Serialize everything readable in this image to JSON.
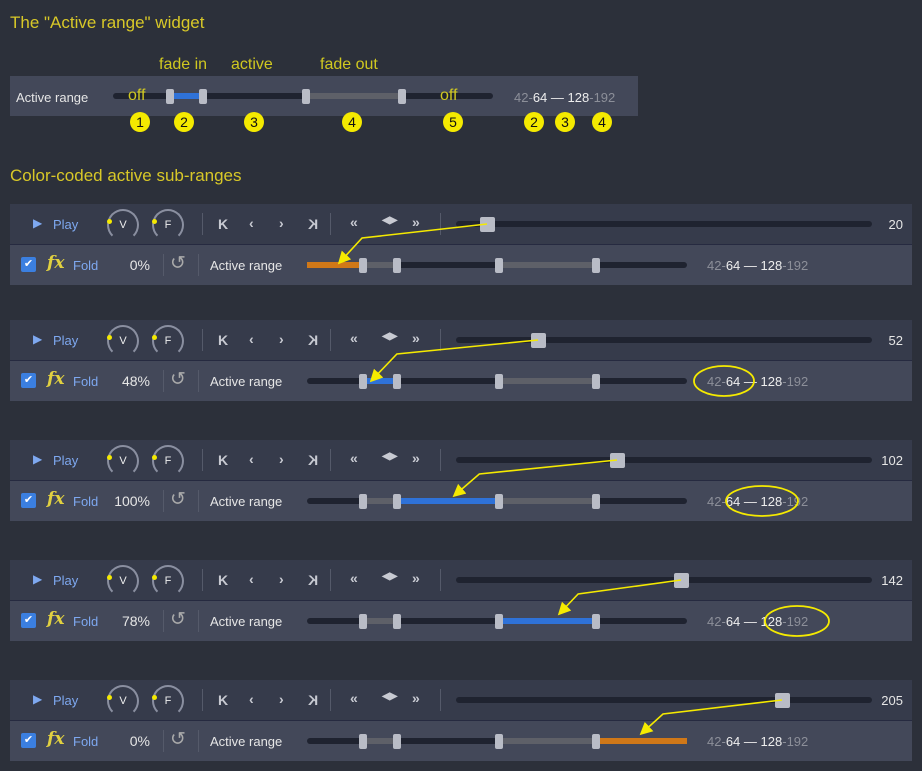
{
  "title": "The \"Active range\" widget",
  "widget": {
    "label": "Active range",
    "off1": "off",
    "off2": "off",
    "fade_in": "fade in",
    "active": "active",
    "fade_out": "fade out",
    "range": {
      "a": "42",
      "b": "64",
      "dash": "—",
      "c": "128",
      "d": "192"
    },
    "badges": [
      "1",
      "2",
      "3",
      "4",
      "5",
      "2",
      "3",
      "4"
    ]
  },
  "subtitle": "Color-coded active sub-ranges",
  "colors": {
    "accent_blue": "#2f72d8",
    "orange": "#d07818",
    "gray_segment": "#5e6068",
    "annotation": "#f5ea00"
  },
  "panels": [
    {
      "play": "Play",
      "knob_v": "V",
      "knob_f": "F",
      "slider_value": "20",
      "fold": "Fold",
      "percent": "0%",
      "label": "Active range",
      "active_segment": "below",
      "highlight": "none"
    },
    {
      "play": "Play",
      "knob_v": "V",
      "knob_f": "F",
      "slider_value": "52",
      "fold": "Fold",
      "percent": "48%",
      "label": "Active range",
      "active_segment": "fade-in",
      "highlight": "42-64"
    },
    {
      "play": "Play",
      "knob_v": "V",
      "knob_f": "F",
      "slider_value": "102",
      "fold": "Fold",
      "percent": "100%",
      "label": "Active range",
      "active_segment": "active",
      "highlight": "64-128"
    },
    {
      "play": "Play",
      "knob_v": "V",
      "knob_f": "F",
      "slider_value": "142",
      "fold": "Fold",
      "percent": "78%",
      "label": "Active range",
      "active_segment": "fade-out",
      "highlight": "128-192"
    },
    {
      "play": "Play",
      "knob_v": "V",
      "knob_f": "F",
      "slider_value": "205",
      "fold": "Fold",
      "percent": "0%",
      "label": "Active range",
      "active_segment": "above",
      "highlight": "none"
    }
  ],
  "icons": {
    "play": "play-icon",
    "first": "skip-first-icon",
    "prev": "prev-icon",
    "next": "next-icon",
    "last": "skip-last-icon",
    "rewind": "rewind-icon",
    "bounce": "bounce-icon",
    "ffwd": "fast-forward-icon",
    "reset": "reset-icon",
    "fx": "fx-icon",
    "check": "checkbox-icon"
  },
  "fx_text": "fx",
  "range": {
    "a": "42",
    "b": "64",
    "dash": "—",
    "c": "128",
    "d": "192"
  }
}
